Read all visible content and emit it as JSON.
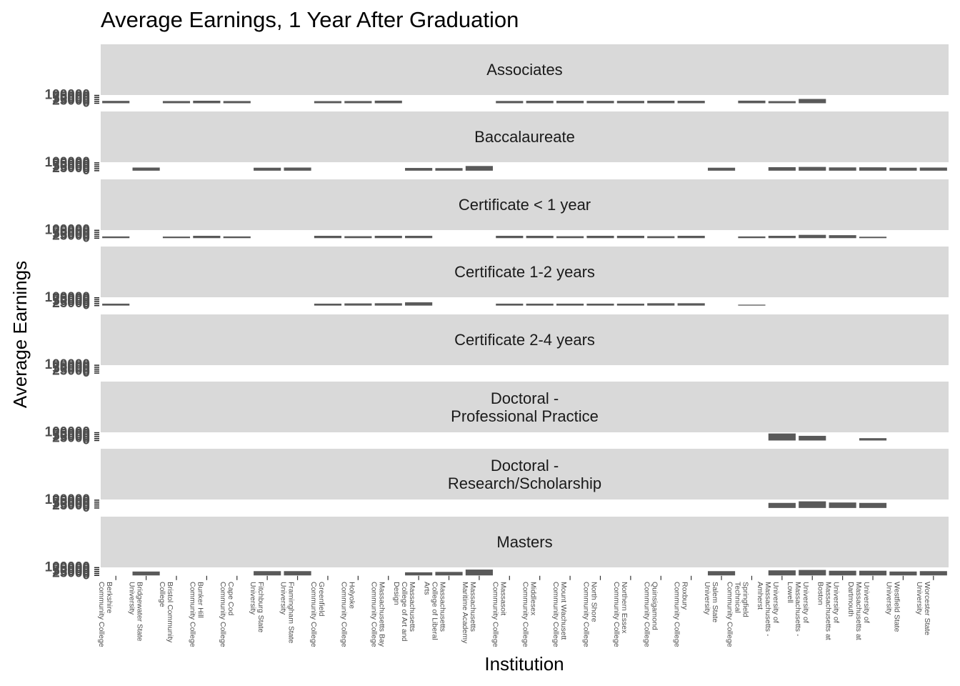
{
  "chart_data": {
    "type": "bar",
    "title": "Average Earnings, 1 Year After Graduation",
    "x_label": "Institution",
    "y_label": "Average Earnings",
    "color": "#595959",
    "categories": [
      "Berkshire Community College",
      "Bridgewater State University",
      "Bristol Community College",
      "Bunker Hill Community College",
      "Cape Cod Community College",
      "Fitchburg State University",
      "Framingham State University",
      "Greenfield Community College",
      "Holyoke Community College",
      "Massachusetts Bay Community College",
      "Massachusetts College of Art and Design",
      "Massachusetts College of Liberal Arts",
      "Massachusetts Maritime Academy",
      "Massasoit Community College",
      "Middlesex Community College",
      "Mount Wachusett Community College",
      "North Shore Community College",
      "Northern Essex Community College",
      "Quinsigamond Community College",
      "Roxbury Community College",
      "Salem State University",
      "Springfield Technical Community College",
      "University of Massachusetts - Amherst",
      "University of Massachusetts - Lowell",
      "University of Massachusetts at Boston",
      "University of Massachusetts at Dartmouth",
      "Westfield State University",
      "Worcester State University"
    ],
    "ylim": [
      -5000,
      105000
    ],
    "yticks": [
      0,
      25000,
      50000,
      75000,
      100000
    ],
    "facets": [
      {
        "name": "Associates",
        "values": [
          30000,
          null,
          28000,
          32000,
          28000,
          null,
          null,
          27000,
          28000,
          33000,
          null,
          null,
          null,
          29000,
          31000,
          31000,
          30000,
          30000,
          32000,
          31000,
          null,
          33000,
          27000,
          55000,
          null,
          null,
          null,
          null
        ]
      },
      {
        "name": "Baccalaureate",
        "values": [
          null,
          40000,
          null,
          null,
          null,
          38000,
          40000,
          null,
          null,
          null,
          35000,
          33000,
          60000,
          null,
          null,
          null,
          null,
          null,
          null,
          null,
          38000,
          null,
          45000,
          48000,
          42000,
          43000,
          38000,
          40000
        ]
      },
      {
        "name": "Certificate < 1 year",
        "values": [
          22000,
          null,
          20000,
          30000,
          22000,
          null,
          null,
          30000,
          25000,
          30000,
          30000,
          null,
          null,
          30000,
          30000,
          25000,
          30000,
          30000,
          25000,
          30000,
          null,
          22000,
          30000,
          42000,
          38000,
          18000,
          null,
          null
        ]
      },
      {
        "name": "Certificate 1-2 years",
        "values": [
          25000,
          null,
          null,
          null,
          null,
          null,
          null,
          25000,
          28000,
          30000,
          42000,
          null,
          null,
          25000,
          25000,
          25000,
          25000,
          25000,
          30000,
          30000,
          null,
          12000,
          null,
          null,
          null,
          null,
          null,
          null
        ]
      },
      {
        "name": "Certificate 2-4 years",
        "values": [
          null,
          null,
          null,
          null,
          null,
          null,
          null,
          null,
          null,
          null,
          null,
          null,
          null,
          null,
          null,
          null,
          null,
          null,
          null,
          null,
          null,
          null,
          null,
          null,
          null,
          null,
          null,
          null
        ]
      },
      {
        "name": "Doctoral -\nProfessional Practice",
        "values": [
          null,
          null,
          null,
          null,
          null,
          null,
          null,
          null,
          null,
          null,
          null,
          null,
          null,
          null,
          null,
          null,
          null,
          null,
          null,
          null,
          null,
          null,
          90000,
          60000,
          null,
          30000,
          null,
          null
        ]
      },
      {
        "name": "Doctoral -\nResearch/Scholarship",
        "values": [
          null,
          null,
          null,
          null,
          null,
          null,
          null,
          null,
          null,
          null,
          null,
          null,
          null,
          null,
          null,
          null,
          null,
          null,
          null,
          null,
          null,
          null,
          65000,
          85000,
          70000,
          65000,
          null,
          null
        ]
      },
      {
        "name": "Masters",
        "values": [
          null,
          50000,
          null,
          null,
          null,
          55000,
          55000,
          null,
          null,
          null,
          40000,
          45000,
          75000,
          null,
          null,
          null,
          null,
          null,
          null,
          null,
          55000,
          null,
          65000,
          70000,
          60000,
          60000,
          50000,
          55000
        ]
      }
    ]
  }
}
